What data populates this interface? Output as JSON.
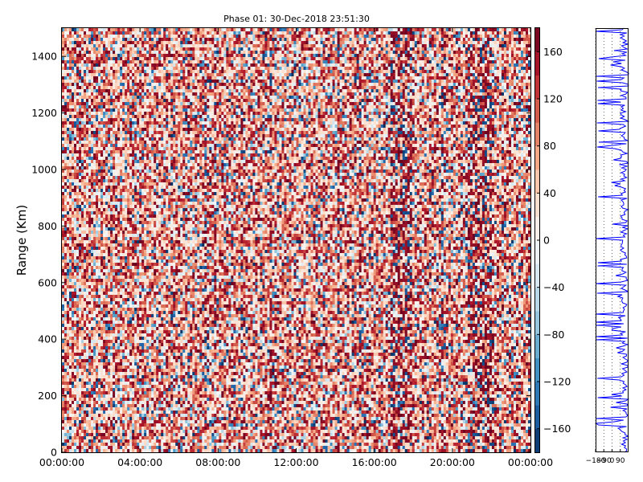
{
  "chart_data": {
    "type": "heatmap",
    "title": "Phase 01: 30-Dec-2018 23:51:30",
    "ylabel": "Range (Km)",
    "xlabel": "",
    "x_ticks": [
      "00:00:00",
      "04:00:00",
      "08:00:00",
      "12:00:00",
      "16:00:00",
      "20:00:00",
      "00:00:00"
    ],
    "y_ticks": [
      "0",
      "200",
      "400",
      "600",
      "800",
      "1000",
      "1200",
      "1400"
    ],
    "ylim": [
      0,
      1500
    ],
    "xlim_hours": [
      0,
      24
    ],
    "colorbar": {
      "range": [
        -180,
        180
      ],
      "ticks": [
        "−160",
        "−120",
        "−80",
        "−40",
        "0",
        "40",
        "80",
        "120",
        "160"
      ],
      "tick_values": [
        -160,
        -120,
        -80,
        -40,
        0,
        40,
        80,
        120,
        160
      ],
      "colormap": "RdBu_r"
    },
    "grid": false,
    "value_distribution": "noisy phase values in degrees, mostly positive (reddish) with scattered negative (bluish) cells; darker vertical streaks near 17-18h and 21-22h",
    "profile_panel": {
      "type": "line",
      "x_ticks": [
        "−180",
        "−90",
        "0",
        "90"
      ],
      "ylim": [
        0,
        1500
      ],
      "line_color": "#0000ff",
      "grid": "dotted vertical"
    }
  }
}
